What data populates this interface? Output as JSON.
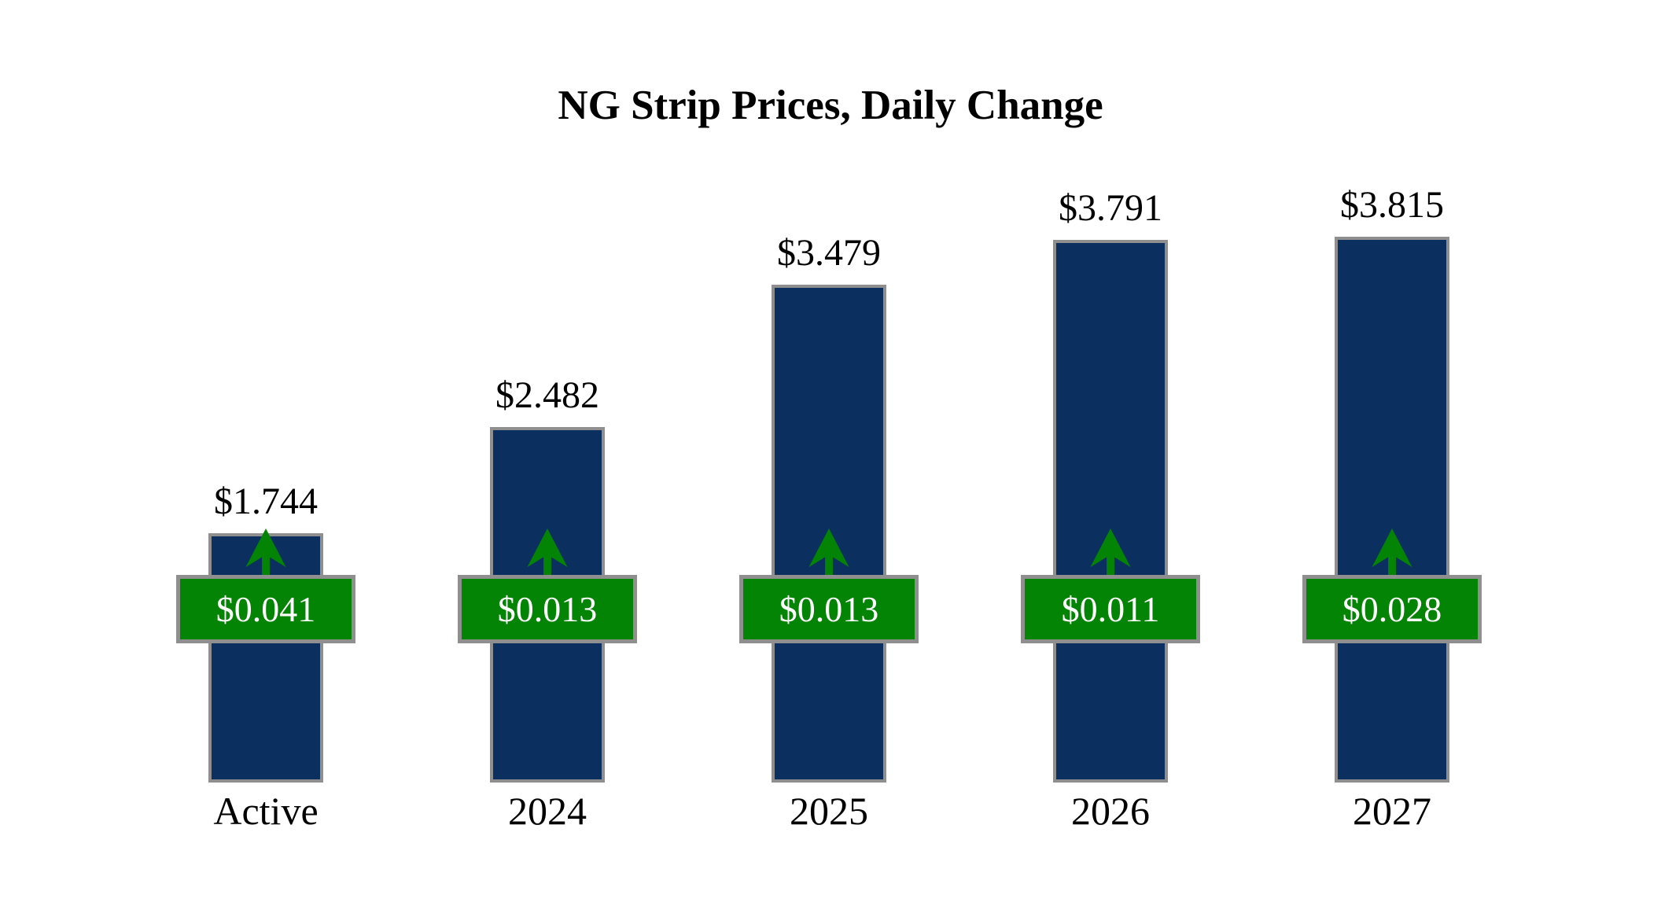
{
  "page": {
    "background": "#FFFFFF"
  },
  "chart": {
    "colors": {
      "bar": "#0B3060",
      "bar_border": "#8F8F8F",
      "badge_green": "#048404",
      "badge_border": "#8F8F8F",
      "badge_text": "#FFFFFF",
      "label_text": "#000000",
      "arrow_green": "#048404"
    }
  },
  "chart_data": {
    "type": "bar",
    "title": "NG Strip Prices, Daily Change",
    "xlabel": "",
    "ylabel": "",
    "ylim": [
      0,
      4.2
    ],
    "grid": false,
    "legend": false,
    "categories": [
      "Active",
      "2024",
      "2025",
      "2026",
      "2027"
    ],
    "series": [
      {
        "name": "Strip Price",
        "values": [
          1.744,
          2.482,
          3.479,
          3.791,
          3.815
        ]
      },
      {
        "name": "Daily Change",
        "values": [
          0.041,
          0.013,
          0.013,
          0.011,
          0.028
        ]
      }
    ],
    "bars": [
      {
        "category": "Active",
        "price_label": "$1.744",
        "change_label": "$0.041",
        "direction": "up"
      },
      {
        "category": "2024",
        "price_label": "$2.482",
        "change_label": "$0.013",
        "direction": "up"
      },
      {
        "category": "2025",
        "price_label": "$3.479",
        "change_label": "$0.013",
        "direction": "up"
      },
      {
        "category": "2026",
        "price_label": "$3.791",
        "change_label": "$0.011",
        "direction": "up"
      },
      {
        "category": "2027",
        "price_label": "$3.815",
        "change_label": "$0.028",
        "direction": "up"
      }
    ]
  }
}
